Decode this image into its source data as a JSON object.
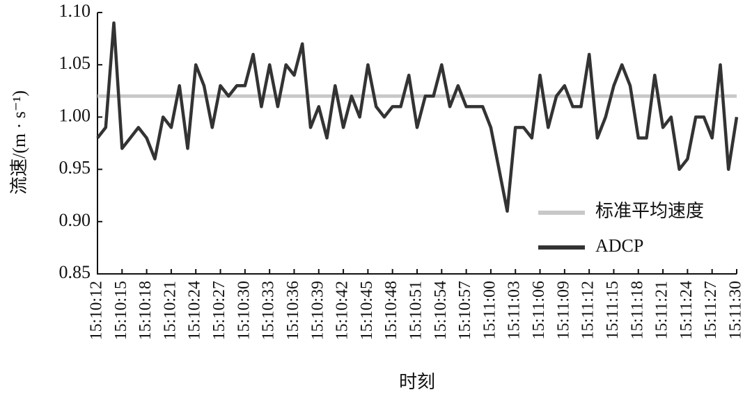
{
  "chart_data": {
    "type": "line",
    "x_label": "时刻",
    "y_label": "流速/(m · s⁻¹)",
    "categories": [
      "15:10:12",
      null,
      null,
      "15:10:15",
      null,
      null,
      "15:10:18",
      null,
      null,
      "15:10:21",
      null,
      null,
      "15:10:24",
      null,
      null,
      "15:10:27",
      null,
      null,
      "15:10:30",
      null,
      null,
      "15:10:33",
      null,
      null,
      "15:10:36",
      null,
      null,
      "15:10:39",
      null,
      null,
      "15:10:42",
      null,
      null,
      "15:10:45",
      null,
      null,
      "15:10:48",
      null,
      null,
      "15:10:51",
      null,
      null,
      "15:10:54",
      null,
      null,
      "15:10:57",
      null,
      null,
      "15:11:00",
      null,
      null,
      "15:11:03",
      null,
      null,
      "15:11:06",
      null,
      null,
      "15:11:09",
      null,
      null,
      "15:11:12",
      null,
      null,
      "15:11:15",
      null,
      null,
      "15:11:18",
      null,
      null,
      "15:11:21",
      null,
      null,
      "15:11:24",
      null,
      null,
      "15:11:27",
      null,
      null,
      "15:11:30"
    ],
    "series": [
      {
        "name": "标准平均速度",
        "color": "#c8c8c8",
        "values": [
          1.02,
          1.02,
          1.02,
          1.02,
          1.02,
          1.02,
          1.02,
          1.02,
          1.02,
          1.02,
          1.02,
          1.02,
          1.02,
          1.02,
          1.02,
          1.02,
          1.02,
          1.02,
          1.02,
          1.02,
          1.02,
          1.02,
          1.02,
          1.02,
          1.02,
          1.02,
          1.02,
          1.02,
          1.02,
          1.02,
          1.02,
          1.02,
          1.02,
          1.02,
          1.02,
          1.02,
          1.02,
          1.02,
          1.02,
          1.02,
          1.02,
          1.02,
          1.02,
          1.02,
          1.02,
          1.02,
          1.02,
          1.02,
          1.02,
          1.02,
          1.02,
          1.02,
          1.02,
          1.02,
          1.02,
          1.02,
          1.02,
          1.02,
          1.02,
          1.02,
          1.02,
          1.02,
          1.02,
          1.02,
          1.02,
          1.02,
          1.02,
          1.02,
          1.02,
          1.02,
          1.02,
          1.02,
          1.02,
          1.02,
          1.02,
          1.02,
          1.02,
          1.02,
          1.02
        ]
      },
      {
        "name": "ADCP",
        "color": "#333333",
        "values": [
          0.98,
          0.99,
          1.09,
          0.97,
          0.98,
          0.99,
          0.98,
          0.96,
          1.0,
          0.99,
          1.03,
          0.97,
          1.05,
          1.03,
          0.99,
          1.03,
          1.02,
          1.03,
          1.03,
          1.06,
          1.01,
          1.05,
          1.01,
          1.05,
          1.04,
          1.07,
          0.99,
          1.01,
          0.98,
          1.03,
          0.99,
          1.02,
          1.0,
          1.05,
          1.01,
          1.0,
          1.01,
          1.01,
          1.04,
          0.99,
          1.02,
          1.02,
          1.05,
          1.01,
          1.03,
          1.01,
          1.01,
          1.01,
          0.99,
          0.95,
          0.91,
          0.99,
          0.99,
          0.98,
          1.04,
          0.99,
          1.02,
          1.03,
          1.01,
          1.01,
          1.06,
          0.98,
          1.0,
          1.03,
          1.05,
          1.03,
          0.98,
          0.98,
          1.04,
          0.99,
          1.0,
          0.95,
          0.96,
          1.0,
          1.0,
          0.98,
          1.05,
          0.95,
          1.0
        ]
      }
    ],
    "ylim": [
      0.85,
      1.1
    ],
    "yticks": [
      0.85,
      {
        "value": 0.9,
        "label": "0.90"
      },
      0.95,
      {
        "value": 1.0,
        "label": "1.00"
      },
      1.05,
      {
        "value": 1.1,
        "label": "1.10"
      }
    ],
    "legend": "lower right",
    "grid": false
  }
}
